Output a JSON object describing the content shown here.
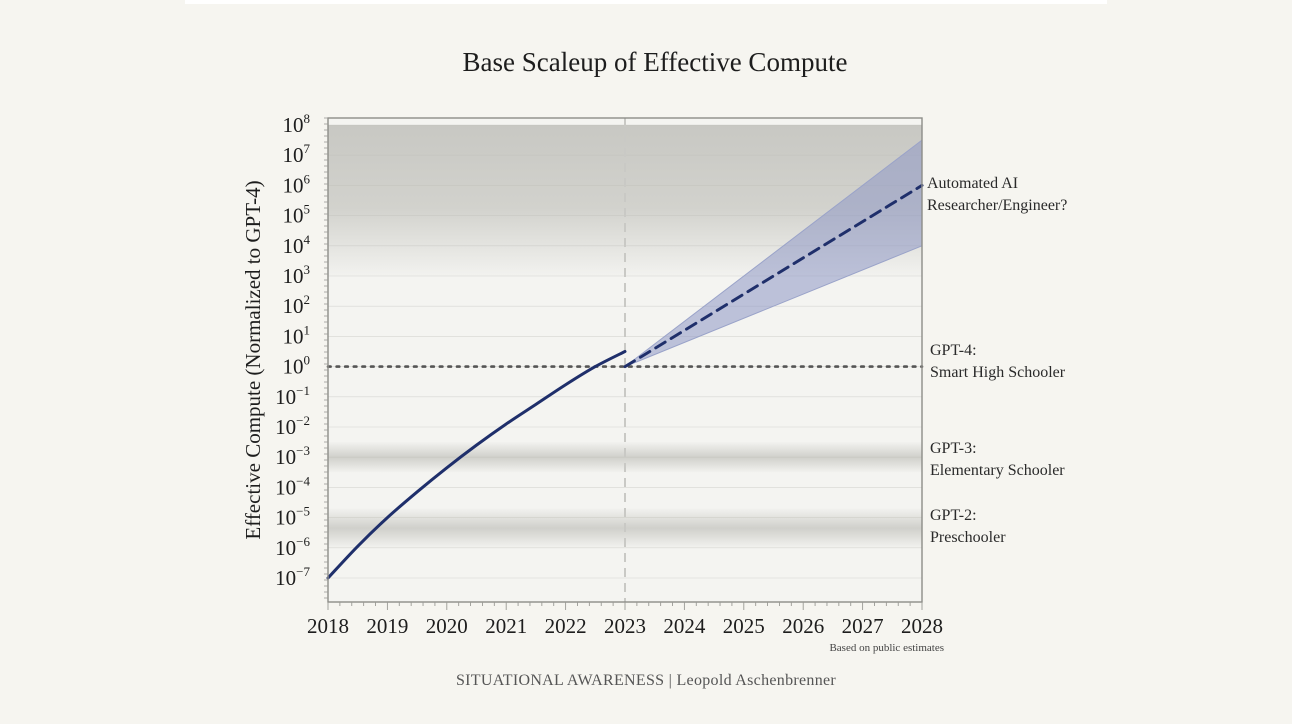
{
  "chart_data": {
    "type": "line",
    "title": "Base Scaleup of Effective Compute",
    "ylabel": "Effective Compute (Normalized to GPT-4)",
    "xlabel": "",
    "yscale": "log",
    "xlim": [
      2018,
      2028
    ],
    "ylim_exponent": [
      -7.7,
      8
    ],
    "x_ticks": [
      "2018",
      "2019",
      "2020",
      "2021",
      "2022",
      "2023",
      "2024",
      "2025",
      "2026",
      "2027",
      "2028"
    ],
    "y_ticks": [
      {
        "base": "10",
        "exp": "8"
      },
      {
        "base": "10",
        "exp": "7"
      },
      {
        "base": "10",
        "exp": "6"
      },
      {
        "base": "10",
        "exp": "5"
      },
      {
        "base": "10",
        "exp": "4"
      },
      {
        "base": "10",
        "exp": "3"
      },
      {
        "base": "10",
        "exp": "2"
      },
      {
        "base": "10",
        "exp": "1"
      },
      {
        "base": "10",
        "exp": "0"
      },
      {
        "base": "10",
        "exp": "−1"
      },
      {
        "base": "10",
        "exp": "−2"
      },
      {
        "base": "10",
        "exp": "−3"
      },
      {
        "base": "10",
        "exp": "−4"
      },
      {
        "base": "10",
        "exp": "−5"
      },
      {
        "base": "10",
        "exp": "−6"
      },
      {
        "base": "10",
        "exp": "−7"
      }
    ],
    "series": [
      {
        "name": "historical",
        "style": "solid",
        "x": [
          2018,
          2018.5,
          2019,
          2019.5,
          2020,
          2020.5,
          2021,
          2021.5,
          2022,
          2022.5,
          2023
        ],
        "log10_y": [
          -7.0,
          -5.95,
          -5.0,
          -4.15,
          -3.35,
          -2.6,
          -1.9,
          -1.25,
          -0.6,
          0.0,
          0.5
        ]
      },
      {
        "name": "projection",
        "style": "dashed",
        "x": [
          2023,
          2028
        ],
        "log10_y": [
          0,
          6
        ]
      }
    ],
    "projection_band": {
      "x": [
        2023,
        2028
      ],
      "lower_log10": [
        0,
        4
      ],
      "upper_log10": [
        0,
        7.5
      ]
    },
    "reference_lines": [
      {
        "type": "horizontal",
        "log10_y": 0,
        "style": "dotted"
      },
      {
        "type": "vertical",
        "x": 2023,
        "style": "dashed"
      }
    ],
    "bands": [
      {
        "name": "automated-researcher",
        "from_log10": 3,
        "to_log10": 8
      },
      {
        "name": "gpt3",
        "from_log10": -3.5,
        "to_log10": -2.5
      },
      {
        "name": "gpt2",
        "from_log10": -6,
        "to_log10": -4.7
      }
    ],
    "annotations": [
      {
        "name": "automated-ai",
        "lines": [
          "Automated AI",
          "Researcher/Engineer?"
        ]
      },
      {
        "name": "gpt4",
        "lines": [
          "GPT-4:",
          "Smart High Schooler"
        ]
      },
      {
        "name": "gpt3",
        "lines": [
          "GPT-3:",
          "Elementary Schooler"
        ]
      },
      {
        "name": "gpt2",
        "lines": [
          "GPT-2:",
          "Preschooler"
        ]
      }
    ],
    "note": "Based on public estimates",
    "credit": "SITUATIONAL AWARENESS | Leopold Aschenbrenner",
    "colors": {
      "line": "#1f2f6b",
      "band_fill": "#8e98c4",
      "band_edge": "#9aa3c9",
      "grey_band": "#cfcfca",
      "grid": "#e6e6e2",
      "plot_bg": "#f4f4f1"
    }
  }
}
